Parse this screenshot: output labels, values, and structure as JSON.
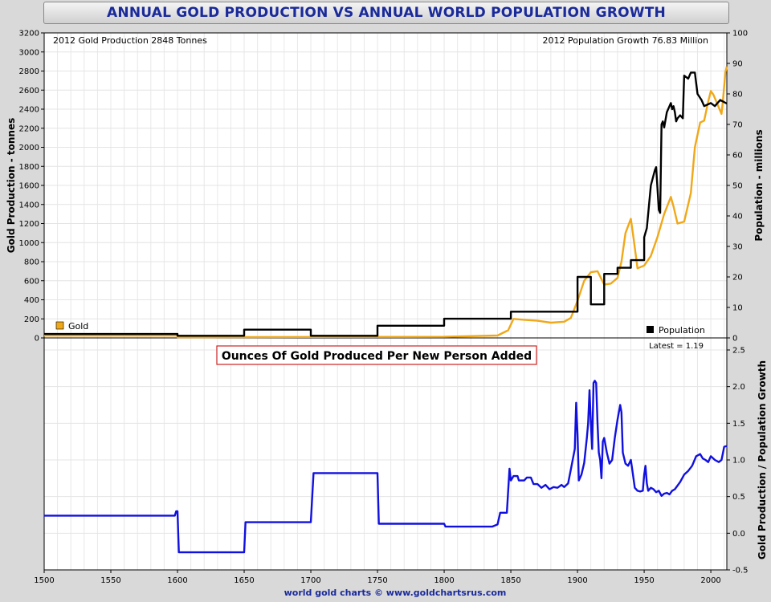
{
  "title": "ANNUAL GOLD PRODUCTION VS ANNUAL WORLD POPULATION GROWTH",
  "footer": "world gold charts © www.goldchartsrus.com",
  "top_panel": {
    "info_left": "2012 Gold Production  2848  Tonnes",
    "info_right": "2012  Population Growth 76.83 Million",
    "legend_gold": "Gold",
    "legend_population": "Population"
  },
  "bottom_panel": {
    "subtitle": "Ounces Of Gold Produced Per New Person Added",
    "latest": "Latest = 1.19"
  },
  "colors": {
    "gold": "#f0a818",
    "population": "#000000",
    "ratio": "#1010e0",
    "title": "#1a2a9a",
    "subtitle": "#1a2a9a",
    "subtitle_border": "#cc2222"
  },
  "chart_data": [
    {
      "type": "line",
      "title": "ANNUAL GOLD PRODUCTION VS ANNUAL WORLD POPULATION GROWTH",
      "xlim": [
        1500,
        2012
      ],
      "ylabel": "Gold Production - tonnes",
      "ylim": [
        0,
        3200
      ],
      "yticks": [
        0,
        200,
        400,
        600,
        800,
        1000,
        1200,
        1400,
        1600,
        1800,
        2000,
        2200,
        2400,
        2600,
        2800,
        3000,
        3200
      ],
      "y2label": "Population - millions",
      "y2lim": [
        0,
        100
      ],
      "y2ticks": [
        0,
        10,
        20,
        30,
        40,
        50,
        60,
        70,
        80,
        90,
        100
      ],
      "grid": true,
      "legend": "bottom",
      "series": [
        {
          "name": "Gold",
          "axis": "left",
          "color": "#f0a818",
          "points": [
            [
              1500,
              24
            ],
            [
              1600,
              24
            ],
            [
              1600,
              7
            ],
            [
              1700,
              10
            ],
            [
              1800,
              12
            ],
            [
              1840,
              25
            ],
            [
              1848,
              80
            ],
            [
              1852,
              200
            ],
            [
              1860,
              190
            ],
            [
              1870,
              180
            ],
            [
              1880,
              160
            ],
            [
              1890,
              170
            ],
            [
              1895,
              210
            ],
            [
              1900,
              390
            ],
            [
              1905,
              600
            ],
            [
              1910,
              690
            ],
            [
              1915,
              700
            ],
            [
              1920,
              560
            ],
            [
              1925,
              570
            ],
            [
              1930,
              630
            ],
            [
              1933,
              800
            ],
            [
              1936,
              1100
            ],
            [
              1940,
              1250
            ],
            [
              1942,
              1050
            ],
            [
              1945,
              730
            ],
            [
              1950,
              760
            ],
            [
              1955,
              860
            ],
            [
              1960,
              1060
            ],
            [
              1965,
              1300
            ],
            [
              1970,
              1480
            ],
            [
              1972,
              1380
            ],
            [
              1975,
              1200
            ],
            [
              1980,
              1220
            ],
            [
              1985,
              1520
            ],
            [
              1988,
              2000
            ],
            [
              1992,
              2260
            ],
            [
              1995,
              2280
            ],
            [
              1998,
              2480
            ],
            [
              2000,
              2590
            ],
            [
              2002,
              2550
            ],
            [
              2005,
              2450
            ],
            [
              2008,
              2350
            ],
            [
              2009,
              2480
            ],
            [
              2010,
              2640
            ],
            [
              2011,
              2790
            ],
            [
              2012,
              2848
            ]
          ]
        },
        {
          "name": "Population",
          "axis": "right",
          "color": "#000000",
          "points": [
            [
              1500,
              1.3
            ],
            [
              1600,
              1.3
            ],
            [
              1600,
              0.7
            ],
            [
              1650,
              0.7
            ],
            [
              1650,
              2.7
            ],
            [
              1700,
              2.7
            ],
            [
              1700,
              0.7
            ],
            [
              1750,
              0.7
            ],
            [
              1750,
              4
            ],
            [
              1800,
              4
            ],
            [
              1800,
              6.3
            ],
            [
              1850,
              6.3
            ],
            [
              1850,
              8.6
            ],
            [
              1900,
              8.6
            ],
            [
              1900,
              20
            ],
            [
              1910,
              20
            ],
            [
              1910,
              11
            ],
            [
              1920,
              11
            ],
            [
              1920,
              21
            ],
            [
              1930,
              21
            ],
            [
              1930,
              23
            ],
            [
              1940,
              23
            ],
            [
              1940,
              25.5
            ],
            [
              1950,
              25.5
            ],
            [
              1950,
              33
            ],
            [
              1952,
              36
            ],
            [
              1955,
              50
            ],
            [
              1958,
              55
            ],
            [
              1959,
              56
            ],
            [
              1961,
              42
            ],
            [
              1962,
              41
            ],
            [
              1963,
              70
            ],
            [
              1964,
              71
            ],
            [
              1965,
              69
            ],
            [
              1967,
              74
            ],
            [
              1970,
              77
            ],
            [
              1971,
              75
            ],
            [
              1972,
              76
            ],
            [
              1973,
              74
            ],
            [
              1974,
              71
            ],
            [
              1975,
              72
            ],
            [
              1977,
              73
            ],
            [
              1979,
              72
            ],
            [
              1980,
              86
            ],
            [
              1983,
              85
            ],
            [
              1985,
              87
            ],
            [
              1988,
              87
            ],
            [
              1990,
              80
            ],
            [
              1993,
              78
            ],
            [
              1995,
              76
            ],
            [
              2000,
              77
            ],
            [
              2003,
              76
            ],
            [
              2007,
              78
            ],
            [
              2012,
              76.83
            ]
          ]
        }
      ]
    },
    {
      "type": "line",
      "title": "Ounces Of Gold Produced Per New Person Added",
      "xlim": [
        1500,
        2012
      ],
      "xticks": [
        1500,
        1550,
        1600,
        1650,
        1700,
        1750,
        1800,
        1850,
        1900,
        1950,
        2000
      ],
      "y2label": "Gold Production / Population Growth",
      "y2lim": [
        -0.5,
        2.5
      ],
      "y2ticks": [
        -0.5,
        0.0,
        0.5,
        1.0,
        1.5,
        2.0,
        2.5
      ],
      "grid": true,
      "series": [
        {
          "name": "Ounces per new person",
          "axis": "right",
          "color": "#1010e0",
          "points": [
            [
              1500,
              0.24
            ],
            [
              1598,
              0.24
            ],
            [
              1599,
              0.3
            ],
            [
              1600,
              0.3
            ],
            [
              1601,
              -0.26
            ],
            [
              1650,
              -0.26
            ],
            [
              1651,
              0.15
            ],
            [
              1700,
              0.15
            ],
            [
              1702,
              0.82
            ],
            [
              1750,
              0.82
            ],
            [
              1751,
              0.13
            ],
            [
              1800,
              0.13
            ],
            [
              1801,
              0.09
            ],
            [
              1836,
              0.09
            ],
            [
              1840,
              0.12
            ],
            [
              1842,
              0.28
            ],
            [
              1847,
              0.28
            ],
            [
              1849,
              0.88
            ],
            [
              1850,
              0.72
            ],
            [
              1852,
              0.78
            ],
            [
              1855,
              0.78
            ],
            [
              1856,
              0.72
            ],
            [
              1860,
              0.72
            ],
            [
              1862,
              0.76
            ],
            [
              1865,
              0.76
            ],
            [
              1867,
              0.67
            ],
            [
              1870,
              0.67
            ],
            [
              1873,
              0.62
            ],
            [
              1876,
              0.66
            ],
            [
              1879,
              0.6
            ],
            [
              1882,
              0.63
            ],
            [
              1885,
              0.62
            ],
            [
              1888,
              0.66
            ],
            [
              1890,
              0.63
            ],
            [
              1893,
              0.68
            ],
            [
              1895,
              0.87
            ],
            [
              1898,
              1.15
            ],
            [
              1899,
              1.78
            ],
            [
              1900,
              1.35
            ],
            [
              1901,
              0.72
            ],
            [
              1903,
              0.8
            ],
            [
              1905,
              0.96
            ],
            [
              1907,
              1.3
            ],
            [
              1908,
              1.5
            ],
            [
              1909,
              1.95
            ],
            [
              1910,
              1.5
            ],
            [
              1911,
              1.15
            ],
            [
              1912,
              2.05
            ],
            [
              1913,
              2.08
            ],
            [
              1914,
              2.05
            ],
            [
              1915,
              1.5
            ],
            [
              1916,
              1.1
            ],
            [
              1917,
              1.0
            ],
            [
              1918,
              0.75
            ],
            [
              1919,
              1.25
            ],
            [
              1920,
              1.3
            ],
            [
              1922,
              1.1
            ],
            [
              1924,
              0.95
            ],
            [
              1926,
              1.0
            ],
            [
              1928,
              1.3
            ],
            [
              1930,
              1.55
            ],
            [
              1932,
              1.75
            ],
            [
              1933,
              1.65
            ],
            [
              1934,
              1.1
            ],
            [
              1936,
              0.95
            ],
            [
              1938,
              0.92
            ],
            [
              1940,
              1.0
            ],
            [
              1941,
              0.88
            ],
            [
              1943,
              0.62
            ],
            [
              1945,
              0.58
            ],
            [
              1947,
              0.57
            ],
            [
              1949,
              0.58
            ],
            [
              1950,
              0.8
            ],
            [
              1951,
              0.92
            ],
            [
              1952,
              0.68
            ],
            [
              1953,
              0.58
            ],
            [
              1955,
              0.62
            ],
            [
              1957,
              0.6
            ],
            [
              1959,
              0.56
            ],
            [
              1961,
              0.58
            ],
            [
              1963,
              0.51
            ],
            [
              1965,
              0.54
            ],
            [
              1967,
              0.55
            ],
            [
              1969,
              0.53
            ],
            [
              1971,
              0.58
            ],
            [
              1973,
              0.6
            ],
            [
              1975,
              0.65
            ],
            [
              1977,
              0.7
            ],
            [
              1980,
              0.8
            ],
            [
              1983,
              0.85
            ],
            [
              1986,
              0.92
            ],
            [
              1989,
              1.05
            ],
            [
              1992,
              1.08
            ],
            [
              1994,
              1.02
            ],
            [
              1996,
              1.0
            ],
            [
              1998,
              0.97
            ],
            [
              2000,
              1.05
            ],
            [
              2003,
              1.0
            ],
            [
              2006,
              0.97
            ],
            [
              2008,
              1.0
            ],
            [
              2010,
              1.18
            ],
            [
              2012,
              1.19
            ]
          ]
        }
      ]
    }
  ]
}
